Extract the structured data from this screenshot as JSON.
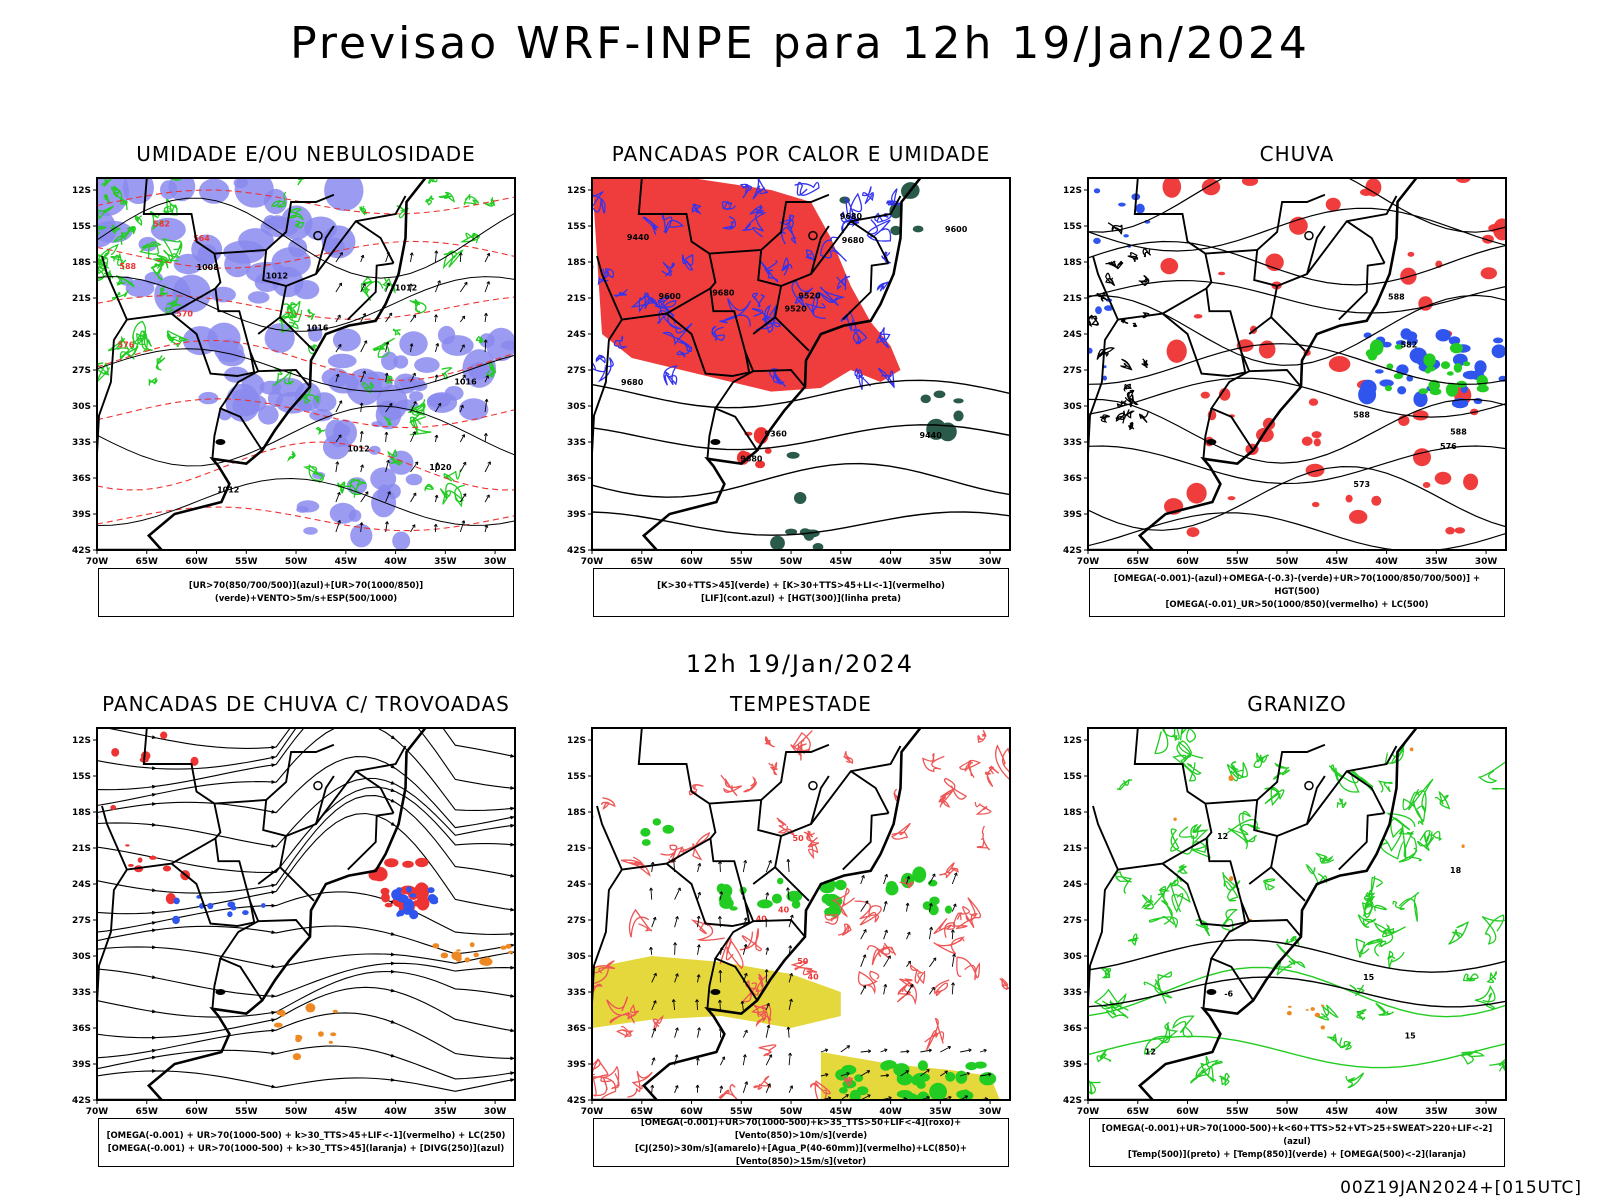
{
  "main_title": "Previsao WRF-INPE  para 12h 19/Jan/2024",
  "mid_title": "12h 19/Jan/2024",
  "footer": "00Z19JAN2024+[015UTC]",
  "colors": {
    "blue": "#8a8aee",
    "green": "#22cc22",
    "red": "#ee3333",
    "orange": "#ee8822",
    "yellow": "#e2d428",
    "darkgreen": "#2a5a4a",
    "purple": "#3333ee"
  },
  "chart_data": [
    {
      "type": "map",
      "title": "UMIDADE E/OU NEBULOSIDADE",
      "legend": [
        "[UR>70(850/700/500)](azul)+[UR>70(1000/850)](verde)+VENTO>5m/s+ESP(500/1000)"
      ],
      "xticks": [
        "70W",
        "65W",
        "60W",
        "55W",
        "50W",
        "45W",
        "40W",
        "35W",
        "30W"
      ],
      "yticks": [
        "12S",
        "15S",
        "18S",
        "21S",
        "24S",
        "27S",
        "30S",
        "33S",
        "36S",
        "39S",
        "42S"
      ],
      "contour_labels": [
        "1016",
        "1012",
        "1012",
        "1012",
        "1008",
        "1012",
        "1016",
        "1020",
        "576",
        "582",
        "570",
        "564",
        "588"
      ]
    },
    {
      "type": "map",
      "title": "PANCADAS POR CALOR E UMIDADE",
      "legend": [
        "[K>30+TTS>45](verde) + [K>30+TTS>45+LI<-1](vermelho)",
        "[LIF](cont.azul) + [HGT(300)](linha preta)"
      ],
      "xticks": [
        "70W",
        "65W",
        "60W",
        "55W",
        "50W",
        "45W",
        "40W",
        "35W",
        "30W"
      ],
      "yticks": [
        "12S",
        "15S",
        "18S",
        "21S",
        "24S",
        "27S",
        "30S",
        "33S",
        "36S",
        "39S",
        "42S"
      ],
      "contour_labels": [
        "9680",
        "9680",
        "9680",
        "9680",
        "9680",
        "9600",
        "9600",
        "9520",
        "9520",
        "9440",
        "9440",
        "9360"
      ]
    },
    {
      "type": "map",
      "title": "CHUVA",
      "legend": [
        "[OMEGA(-0.001)-(azul)+OMEGA-(-0.3)-(verde)+UR>70(1000/850/700/500)] + HGT(500)",
        "[OMEGA(-0.01)_UR>50(1000/850)(vermelho) + LC(500)"
      ],
      "xticks": [
        "70W",
        "65W",
        "60W",
        "55W",
        "50W",
        "45W",
        "40W",
        "35W",
        "30W"
      ],
      "yticks": [
        "12S",
        "15S",
        "18S",
        "21S",
        "24S",
        "27S",
        "30S",
        "33S",
        "36S",
        "39S",
        "42S"
      ],
      "contour_labels": [
        "588",
        "588",
        "582",
        "576",
        "573",
        "588"
      ]
    },
    {
      "type": "map",
      "title": "PANCADAS DE CHUVA C/ TROVOADAS",
      "legend": [
        "[OMEGA(-0.001) + UR>70(1000-500) + k>30_TTS>45+LIF<-1](vermelho) + LC(250)",
        "[OMEGA(-0.001) + UR>70(1000-500) + k>30_TTS>45](laranja) + [DIVG(250)](azul)"
      ],
      "xticks": [
        "70W",
        "65W",
        "60W",
        "55W",
        "50W",
        "45W",
        "40W",
        "35W",
        "30W"
      ],
      "yticks": [
        "12S",
        "15S",
        "18S",
        "21S",
        "24S",
        "27S",
        "30S",
        "33S",
        "36S",
        "39S",
        "42S"
      ],
      "contour_labels": []
    },
    {
      "type": "map",
      "title": "TEMPESTADE",
      "legend": [
        "[OMEGA(-0.001)+UR>70(1000-500)+k>35_TTS>50+LIF<-4](roxo)+[Vento(850)>10m/s](verde)",
        "[CJ(250)>30m/s](amarelo)+[Agua_P(40-60mm)](vermelho)+LC(850)+[Vento(850)>15m/s](vetor)"
      ],
      "xticks": [
        "70W",
        "65W",
        "60W",
        "55W",
        "50W",
        "45W",
        "40W",
        "35W",
        "30W"
      ],
      "yticks": [
        "12S",
        "15S",
        "18S",
        "21S",
        "24S",
        "27S",
        "30S",
        "33S",
        "36S",
        "39S",
        "42S"
      ],
      "contour_labels": [
        "50",
        "40",
        "40",
        "50",
        "40"
      ]
    },
    {
      "type": "map",
      "title": "GRANIZO",
      "legend": [
        "[OMEGA(-0.001)+UR>70(1000-500)+k<60+TTS>52+VT>25+SWEAT>220+LIF<-2](azul)",
        "[Temp(500)](preto) + [Temp(850)](verde) + [OMEGA(500)<-2](laranja)"
      ],
      "xticks": [
        "70W",
        "65W",
        "60W",
        "55W",
        "50W",
        "45W",
        "40W",
        "35W",
        "30W"
      ],
      "yticks": [
        "12S",
        "15S",
        "18S",
        "21S",
        "24S",
        "27S",
        "30S",
        "33S",
        "36S",
        "39S",
        "42S"
      ],
      "contour_labels": [
        "15",
        "12",
        "12",
        "-6",
        "18",
        "15"
      ]
    }
  ]
}
